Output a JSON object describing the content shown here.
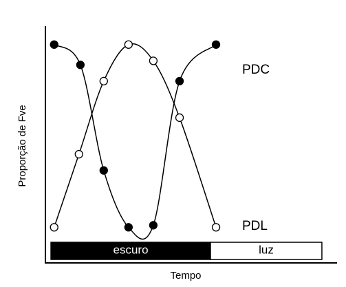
{
  "chart_data": {
    "type": "line",
    "x_label": "Tempo",
    "y_label": "Proporção de Fve",
    "xlim": [
      0,
      10
    ],
    "ylim": [
      0,
      1
    ],
    "series": [
      {
        "name": "PDC",
        "color": "#000000",
        "marker_fill": "#000000",
        "x": [
          0.3,
          1.2,
          2.0,
          2.85,
          3.7,
          4.6,
          5.85
        ],
        "values": [
          0.95,
          0.85,
          0.33,
          0.05,
          0.06,
          0.77,
          0.95
        ]
      },
      {
        "name": "PDL",
        "color": "#000000",
        "marker_fill": "#ffffff",
        "x": [
          0.3,
          1.15,
          2.0,
          2.85,
          3.7,
          4.6,
          5.85
        ],
        "values": [
          0.05,
          0.41,
          0.77,
          0.95,
          0.87,
          0.59,
          0.05
        ]
      }
    ],
    "periods": [
      {
        "label": "escuro",
        "start": 0.19,
        "end": 5.66,
        "color": "#000000",
        "text_color": "#ffffff"
      },
      {
        "label": "luz",
        "start": 5.66,
        "end": 9.48,
        "color": "#ffffff",
        "text_color": "#000000"
      }
    ]
  }
}
